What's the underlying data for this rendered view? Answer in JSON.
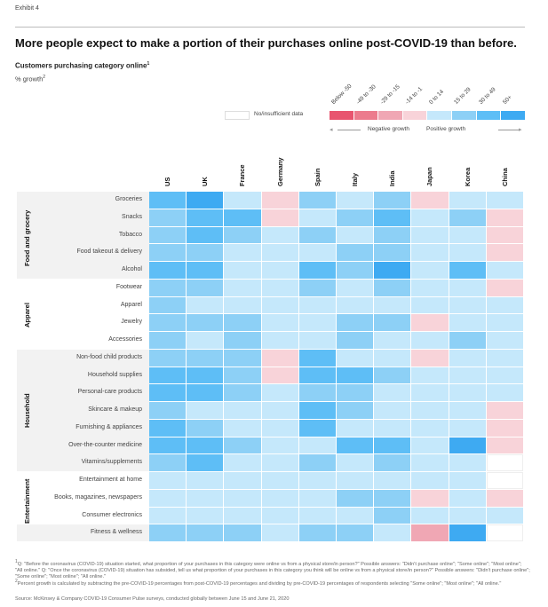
{
  "exhibit": "Exhibit 4",
  "title": "More people expect to make a portion of their purchases online post-COVID-19 than before.",
  "subtitle": "Customers purchasing category online",
  "subtitle_sup": "1",
  "unit": "% growth",
  "unit_sup": "2",
  "legend": {
    "no_data_label": "No/insufficient data",
    "negative_label": "Negative growth",
    "positive_label": "Positive growth",
    "bins": [
      {
        "label": "Below -50",
        "color": "#e8546f"
      },
      {
        "label": "-49 to -30",
        "color": "#ec7b8d"
      },
      {
        "label": "-29 to -15",
        "color": "#f0a7b4"
      },
      {
        "label": "-14 to -1",
        "color": "#f8d3d9"
      },
      {
        "label": "0 to 14",
        "color": "#c5e8fb"
      },
      {
        "label": "15 to 29",
        "color": "#8dd0f6"
      },
      {
        "label": "30 to 49",
        "color": "#5ebef6"
      },
      {
        "label": "50+",
        "color": "#3eaaf2"
      }
    ]
  },
  "chart_data": {
    "type": "heatmap",
    "value_encoding": "legend bin label per cell; null = No/insufficient data",
    "columns": [
      "US",
      "UK",
      "France",
      "Germany",
      "Spain",
      "Italy",
      "India",
      "Japan",
      "Korea",
      "China"
    ],
    "groups": [
      {
        "name": "Food and grocery",
        "rows": [
          {
            "label": "Groceries",
            "bins": [
              "30 to 49",
              "50+",
              "0 to 14",
              "-14 to -1",
              "15 to 29",
              "0 to 14",
              "15 to 29",
              "-14 to -1",
              "0 to 14",
              "0 to 14"
            ]
          },
          {
            "label": "Snacks",
            "bins": [
              "15 to 29",
              "30 to 49",
              "30 to 49",
              "-14 to -1",
              "0 to 14",
              "15 to 29",
              "30 to 49",
              "0 to 14",
              "15 to 29",
              "-14 to -1"
            ]
          },
          {
            "label": "Tobacco",
            "bins": [
              "15 to 29",
              "30 to 49",
              "15 to 29",
              "0 to 14",
              "15 to 29",
              "0 to 14",
              "15 to 29",
              "0 to 14",
              "0 to 14",
              "-14 to -1"
            ]
          },
          {
            "label": "Food takeout & delivery",
            "bins": [
              "15 to 29",
              "15 to 29",
              "0 to 14",
              "0 to 14",
              "0 to 14",
              "15 to 29",
              "15 to 29",
              "0 to 14",
              "0 to 14",
              "-14 to -1"
            ]
          },
          {
            "label": "Alcohol",
            "bins": [
              "30 to 49",
              "30 to 49",
              "0 to 14",
              "0 to 14",
              "30 to 49",
              "15 to 29",
              "50+",
              "0 to 14",
              "30 to 49",
              "0 to 14"
            ]
          }
        ]
      },
      {
        "name": "Apparel",
        "rows": [
          {
            "label": "Footwear",
            "bins": [
              "15 to 29",
              "15 to 29",
              "0 to 14",
              "0 to 14",
              "15 to 29",
              "0 to 14",
              "15 to 29",
              "0 to 14",
              "0 to 14",
              "-14 to -1"
            ]
          },
          {
            "label": "Apparel",
            "bins": [
              "15 to 29",
              "0 to 14",
              "0 to 14",
              "0 to 14",
              "0 to 14",
              "0 to 14",
              "0 to 14",
              "0 to 14",
              "0 to 14",
              "0 to 14"
            ]
          },
          {
            "label": "Jewelry",
            "bins": [
              "15 to 29",
              "15 to 29",
              "15 to 29",
              "0 to 14",
              "0 to 14",
              "15 to 29",
              "15 to 29",
              "-14 to -1",
              "0 to 14",
              "0 to 14"
            ]
          },
          {
            "label": "Accessories",
            "bins": [
              "15 to 29",
              "0 to 14",
              "15 to 29",
              "0 to 14",
              "0 to 14",
              "15 to 29",
              "0 to 14",
              "0 to 14",
              "15 to 29",
              "0 to 14"
            ]
          }
        ]
      },
      {
        "name": "Household",
        "rows": [
          {
            "label": "Non-food child products",
            "bins": [
              "15 to 29",
              "15 to 29",
              "15 to 29",
              "-14 to -1",
              "30 to 49",
              "0 to 14",
              "0 to 14",
              "-14 to -1",
              "0 to 14",
              "0 to 14"
            ]
          },
          {
            "label": "Household supplies",
            "bins": [
              "30 to 49",
              "30 to 49",
              "15 to 29",
              "-14 to -1",
              "30 to 49",
              "30 to 49",
              "15 to 29",
              "0 to 14",
              "0 to 14",
              "0 to 14"
            ]
          },
          {
            "label": "Personal-care products",
            "bins": [
              "30 to 49",
              "30 to 49",
              "15 to 29",
              "0 to 14",
              "15 to 29",
              "15 to 29",
              "0 to 14",
              "0 to 14",
              "0 to 14",
              "0 to 14"
            ]
          },
          {
            "label": "Skincare & makeup",
            "bins": [
              "15 to 29",
              "0 to 14",
              "0 to 14",
              "0 to 14",
              "30 to 49",
              "15 to 29",
              "0 to 14",
              "0 to 14",
              "0 to 14",
              "-14 to -1"
            ]
          },
          {
            "label": "Furnishing & appliances",
            "bins": [
              "30 to 49",
              "15 to 29",
              "0 to 14",
              "0 to 14",
              "30 to 49",
              "0 to 14",
              "0 to 14",
              "0 to 14",
              "0 to 14",
              "-14 to -1"
            ]
          },
          {
            "label": "Over-the-counter medicine",
            "bins": [
              "30 to 49",
              "30 to 49",
              "15 to 29",
              "0 to 14",
              "0 to 14",
              "30 to 49",
              "30 to 49",
              "0 to 14",
              "50+",
              "-14 to -1"
            ]
          },
          {
            "label": "Vitamins/supplements",
            "bins": [
              "15 to 29",
              "30 to 49",
              "0 to 14",
              "0 to 14",
              "15 to 29",
              "0 to 14",
              "15 to 29",
              "0 to 14",
              "0 to 14",
              null
            ]
          }
        ]
      },
      {
        "name": "Entertainment",
        "rows": [
          {
            "label": "Entertainment at home",
            "bins": [
              "0 to 14",
              "0 to 14",
              "0 to 14",
              "0 to 14",
              "0 to 14",
              "0 to 14",
              "0 to 14",
              "0 to 14",
              "0 to 14",
              null
            ]
          },
          {
            "label": "Books, magazines, newspapers",
            "bins": [
              "0 to 14",
              "0 to 14",
              "0 to 14",
              "0 to 14",
              "0 to 14",
              "15 to 29",
              "15 to 29",
              "-14 to -1",
              "0 to 14",
              "-14 to -1"
            ]
          },
          {
            "label": "Consumer electronics",
            "bins": [
              "0 to 14",
              "0 to 14",
              "0 to 14",
              "0 to 14",
              "0 to 14",
              "0 to 14",
              "15 to 29",
              "0 to 14",
              "0 to 14",
              "0 to 14"
            ]
          }
        ]
      },
      {
        "name": "",
        "rows": [
          {
            "label": "Fitness & wellness",
            "bins": [
              "15 to 29",
              "15 to 29",
              "15 to 29",
              "0 to 14",
              "15 to 29",
              "15 to 29",
              "0 to 14",
              "-29 to -15",
              "50+",
              null
            ]
          }
        ]
      }
    ]
  },
  "footnotes": {
    "note1": "Q: \"Before the coronavirus (COVID-19) situation started, what proportion of your purchases in this category were online vs from a physical store/in person?\" Possible answers: \"Didn't purchase online\"; \"Some online\"; \"Most online\"; \"All online.\" Q: \"Once the coronavirus (COVID-19) situation has subsided, tell us what proportion of your purchases in this category you think will be online vs from a physical store/in person?\" Possible answers: \"Didn't purchase online\"; \"Some online\"; \"Most online\"; \"All online.\"",
    "note2": "Percent growth is calculated by subtracting the pre-COVID-19 percentages from post-COVID-19 percentages and dividing by pre-COVID-19 percentages of respondents selecting \"Some online\"; \"Most online\"; \"All online.\"",
    "source": "Source: McKinsey & Company COVID-19 Consumer Pulse surveys, conducted globally between June 15 and June 21, 2020"
  }
}
